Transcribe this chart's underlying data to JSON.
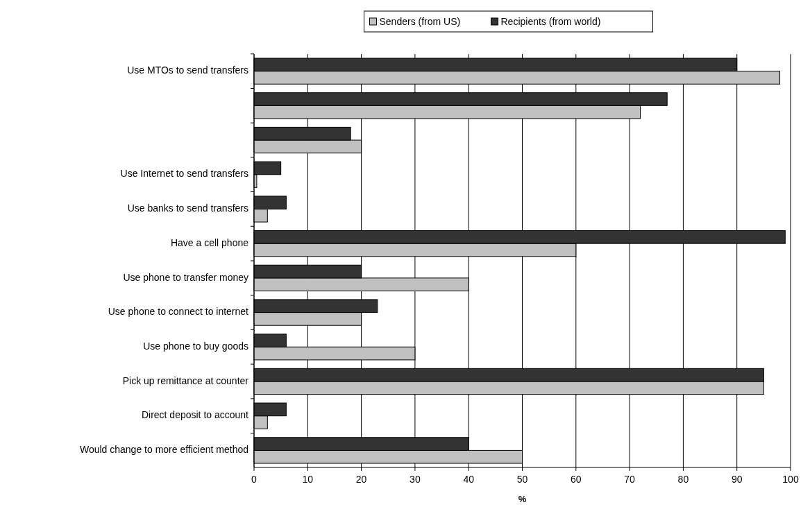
{
  "chart_data": {
    "type": "bar",
    "orientation": "horizontal",
    "xlabel": "%",
    "categories": [
      "Use MTOs to send transfers",
      null,
      null,
      "Use Internet to send transfers",
      "Use banks to send transfers",
      "Have a cell phone",
      "Use phone to transfer money",
      "Use phone to connect to internet",
      "Use phone to buy goods",
      "Pick up remittance at counter",
      "Direct deposit to account",
      "Would change to more efficient method"
    ],
    "series": [
      {
        "name": "Senders (from US)",
        "color": "#c0c0c0",
        "values": [
          98,
          72,
          20,
          0.5,
          2.5,
          60,
          40,
          20,
          30,
          95,
          2.5,
          50
        ]
      },
      {
        "name": "Recipients (from world)",
        "color": "#333333",
        "values": [
          90,
          77,
          18,
          5,
          6,
          99,
          20,
          23,
          6,
          95,
          6,
          40
        ]
      }
    ],
    "xlim": [
      0,
      100
    ],
    "xticks": [
      0,
      10,
      20,
      30,
      40,
      50,
      60,
      70,
      80,
      90,
      100
    ],
    "grid": "x",
    "legend": "top"
  }
}
